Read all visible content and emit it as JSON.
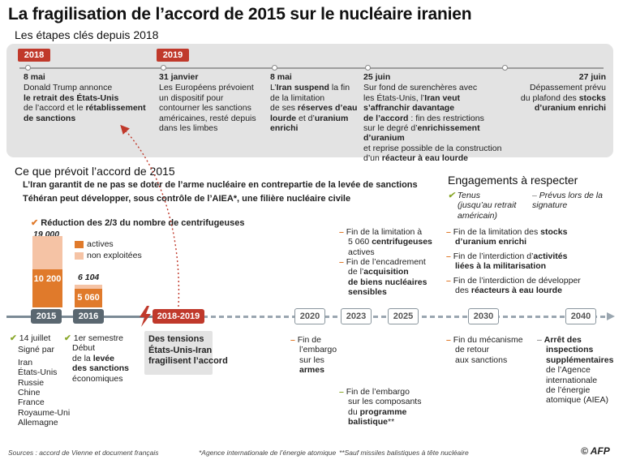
{
  "title": "La fragilisation de l’accord de 2015 sur le nucléaire iranien",
  "subtitle": "Les étapes clés depuis 2018",
  "top_timeline": {
    "years": [
      "2018",
      "2019"
    ],
    "events": [
      {
        "date": "8 mai",
        "lines": [
          [
            "Donald Trump annonce"
          ],
          [
            "",
            "le retrait des États-Unis"
          ],
          [
            "de l’accord et le ",
            "rétablissement"
          ],
          [
            "",
            "de sanctions"
          ]
        ]
      },
      {
        "date": "31 janvier",
        "lines": [
          [
            "Les Européens prévoient"
          ],
          [
            "un dispositif pour"
          ],
          [
            "contourner les sanctions"
          ],
          [
            "américaines, resté depuis"
          ],
          [
            "dans les limbes"
          ]
        ]
      },
      {
        "date": "8 mai",
        "lines": [
          [
            "L’",
            "Iran suspend",
            " la fin"
          ],
          [
            "de la limitation"
          ],
          [
            "de ses ",
            "réserves d’eau"
          ],
          [
            "",
            "lourde",
            " et d’",
            "uranium"
          ],
          [
            "",
            "enrichi"
          ]
        ]
      },
      {
        "date": "25 juin",
        "lines": [
          [
            "Sur fond de surenchères avec"
          ],
          [
            "les États-Unis, l’",
            "Iran veut"
          ],
          [
            "",
            "s’affranchir davantage"
          ],
          [
            "",
            "de l’accord",
            " : fin des restrictions"
          ],
          [
            "sur le degré d’",
            "enrichissement d’uranium"
          ],
          [
            "et reprise possible de la construction"
          ],
          [
            "d’un ",
            "réacteur à eau lourde"
          ]
        ]
      },
      {
        "date": "27 juin",
        "lines": [
          [
            "Dépassement prévu"
          ],
          [
            "du plafond des ",
            "stocks"
          ],
          [
            "",
            "d’uranium enrichi"
          ]
        ]
      }
    ]
  },
  "accord": {
    "heading": "Ce que prévoit l’accord de 2015",
    "line1": "L’Iran garantit de ne pas se doter de l’arme nucléaire en contrepartie de la levée de sanctions",
    "line2": "Téhéran peut développer, sous contrôle de l’AIEA*, une filière nucléaire civile"
  },
  "centrifuges": {
    "label": "Réduction des 2/3 du nombre de centrifugeuses",
    "legend": {
      "active": "actives",
      "inactive": "non exploitées"
    },
    "bars": [
      {
        "total": 19000,
        "active": 10200,
        "total_label": "19 000",
        "active_label": "10 200"
      },
      {
        "total": 6104,
        "active": 5060,
        "total_label": "6 104",
        "active_label": "5 060"
      }
    ],
    "colors": {
      "active": "#e07a2b",
      "inactive": "#f5c3a5"
    }
  },
  "engagements": {
    "heading": "Engagements à respecter",
    "legend_kept": "Tenus",
    "legend_kept_note": "(jusqu’au retrait américain)",
    "legend_planned": "Prévus lors de la signature",
    "items": [
      {
        "lines": [
          [
            "Fin de la limitation à"
          ],
          [
            "5 060 ",
            "centrifugeuses"
          ],
          [
            "actives"
          ]
        ]
      },
      {
        "lines": [
          [
            "Fin de l’encadrement"
          ],
          [
            "de l’",
            "acquisition"
          ],
          [
            "",
            "de biens nucléaires"
          ],
          [
            "",
            "sensibles"
          ]
        ]
      },
      {
        "lines": [
          [
            "Fin de la limitation des ",
            "stocks"
          ],
          [
            "",
            "d’uranium enrichi"
          ]
        ]
      },
      {
        "lines": [
          [
            "Fin de l’interdiction d’",
            "activités"
          ],
          [
            "",
            "liées à la militarisation"
          ]
        ]
      },
      {
        "lines": [
          [
            "Fin de l’interdiction de développer"
          ],
          [
            "des ",
            "réacteurs à eau lourde"
          ]
        ]
      }
    ]
  },
  "main_timeline": {
    "years": [
      "2015",
      "2016",
      "2018-2019",
      "2020",
      "2023",
      "2025",
      "2030",
      "2040"
    ],
    "tension": [
      "Des tensions",
      "États-Unis-Iran",
      "fragilisent l’accord"
    ],
    "signing": {
      "date": "14 juillet",
      "intro": "Signé par",
      "countries": [
        "Iran",
        "États-Unis",
        "Russie",
        "Chine",
        "France",
        "Royaume-Uni",
        "Allemagne"
      ]
    },
    "semester": {
      "date": "1er semestre",
      "lines": [
        [
          "Début"
        ],
        [
          "de la ",
          "levée"
        ],
        [
          "",
          "des sanctions"
        ],
        [
          "économiques"
        ]
      ]
    },
    "y2020": {
      "lines": [
        [
          "Fin de"
        ],
        [
          "l’embargo"
        ],
        [
          "sur les"
        ],
        [
          "",
          "armes"
        ]
      ]
    },
    "y2023": {
      "lines": [
        [
          "Fin de l’embargo"
        ],
        [
          "sur les composants"
        ],
        [
          "du ",
          "programme"
        ],
        [
          "",
          "balistique",
          "**"
        ]
      ]
    },
    "y2030": {
      "lines": [
        [
          "Fin du mécanisme"
        ],
        [
          "de retour"
        ],
        [
          "aux sanctions"
        ]
      ]
    },
    "y2040": {
      "lines": [
        [
          "",
          "Arrêt des"
        ],
        [
          "",
          "inspections"
        ],
        [
          "",
          "supplémentaires"
        ],
        [
          "de l’Agence"
        ],
        [
          "internationale"
        ],
        [
          "de l’énergie"
        ],
        [
          "atomique (AIEA)"
        ]
      ]
    }
  },
  "footer": {
    "sources": "Sources : accord de Vienne et document français",
    "note1": "*Agence internationale de l’énergie atomique",
    "note2": "**Sauf missiles balistiques à tête nucléaire",
    "credit": "© AFP"
  }
}
